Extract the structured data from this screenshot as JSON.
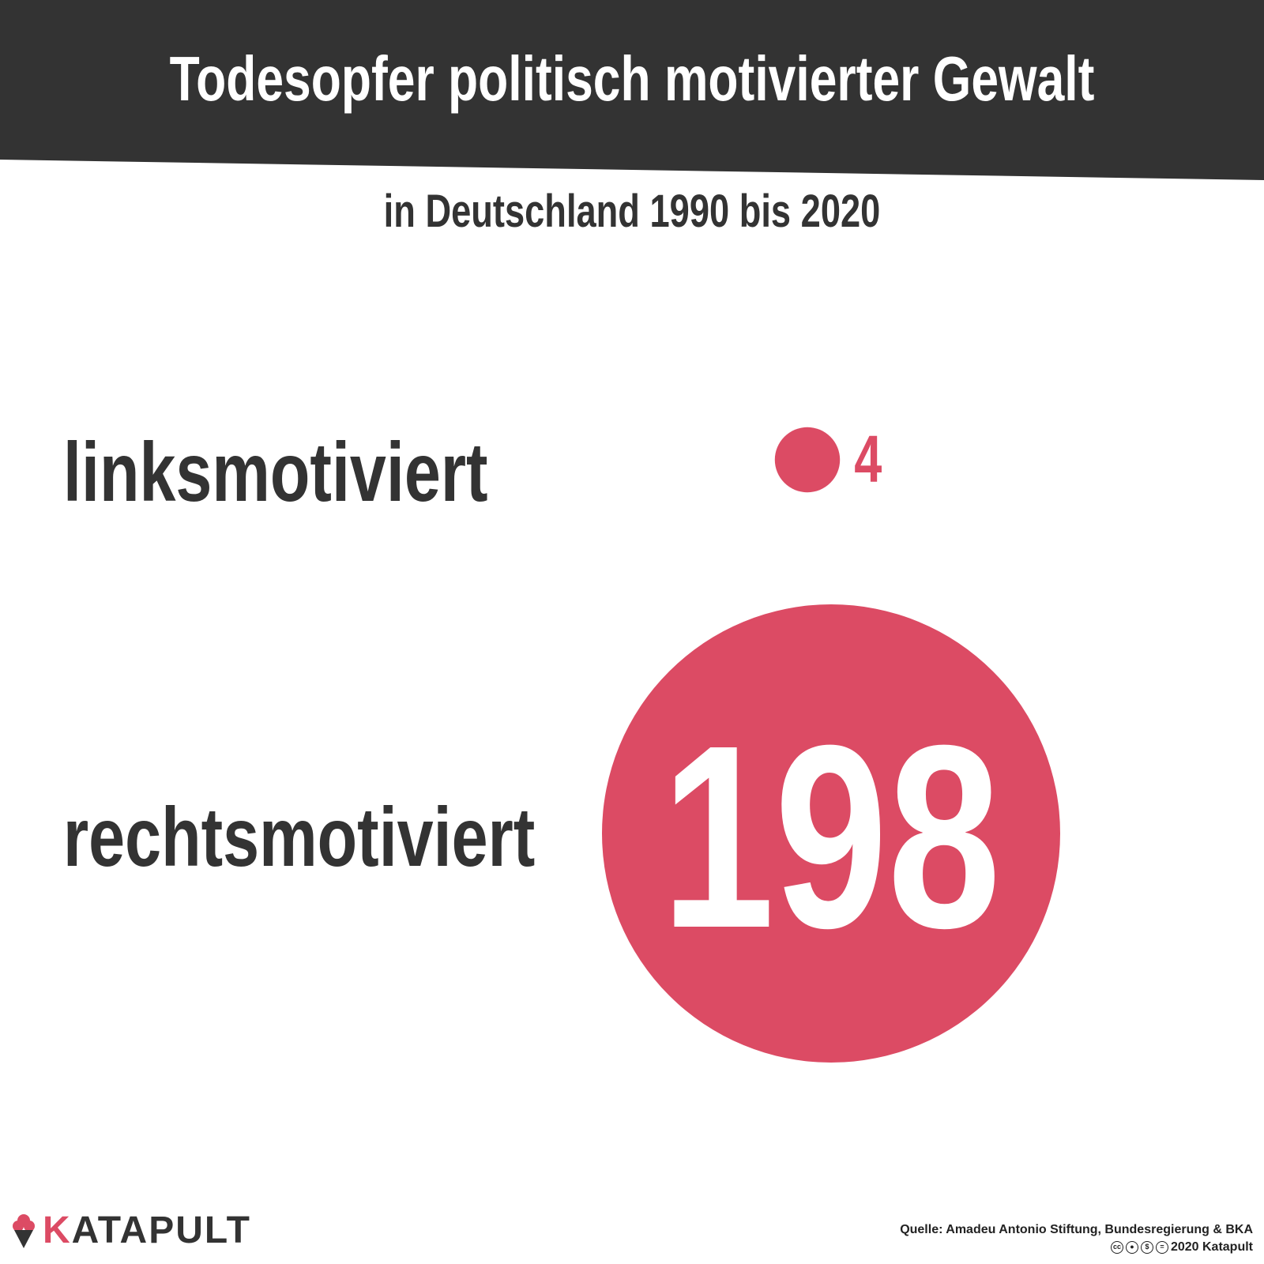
{
  "title": "Todesopfer politisch motivierter Gewalt",
  "subtitle": "in Deutschland 1990 bis 2020",
  "colors": {
    "banner": "#333333",
    "accent": "#dc4b64",
    "text": "#333333",
    "bubble_text_small": "#dc4b64",
    "bubble_text_large": "#ffffff"
  },
  "chart_data": {
    "type": "bubble",
    "title": "Todesopfer politisch motivierter Gewalt",
    "subtitle": "in Deutschland 1990 bis 2020",
    "categories": [
      "linksmotiviert",
      "rechtsmotiviert"
    ],
    "values": [
      4,
      198
    ],
    "value_labels": [
      "4",
      "198"
    ],
    "encoding": "circle area proportional to value",
    "legend": "none",
    "grid": false
  },
  "footer": {
    "brand": "KATAPULT",
    "brand_first": "K",
    "brand_rest": "ATAPULT",
    "logo_icon": "ice-cream-cone-icon",
    "source": "Quelle: Amadeu Antonio Stiftung, Bundesregierung & BKA",
    "license": "2020 Katapult",
    "license_icons": [
      "cc-icon",
      "by-icon",
      "nc-icon",
      "nd-icon"
    ]
  }
}
